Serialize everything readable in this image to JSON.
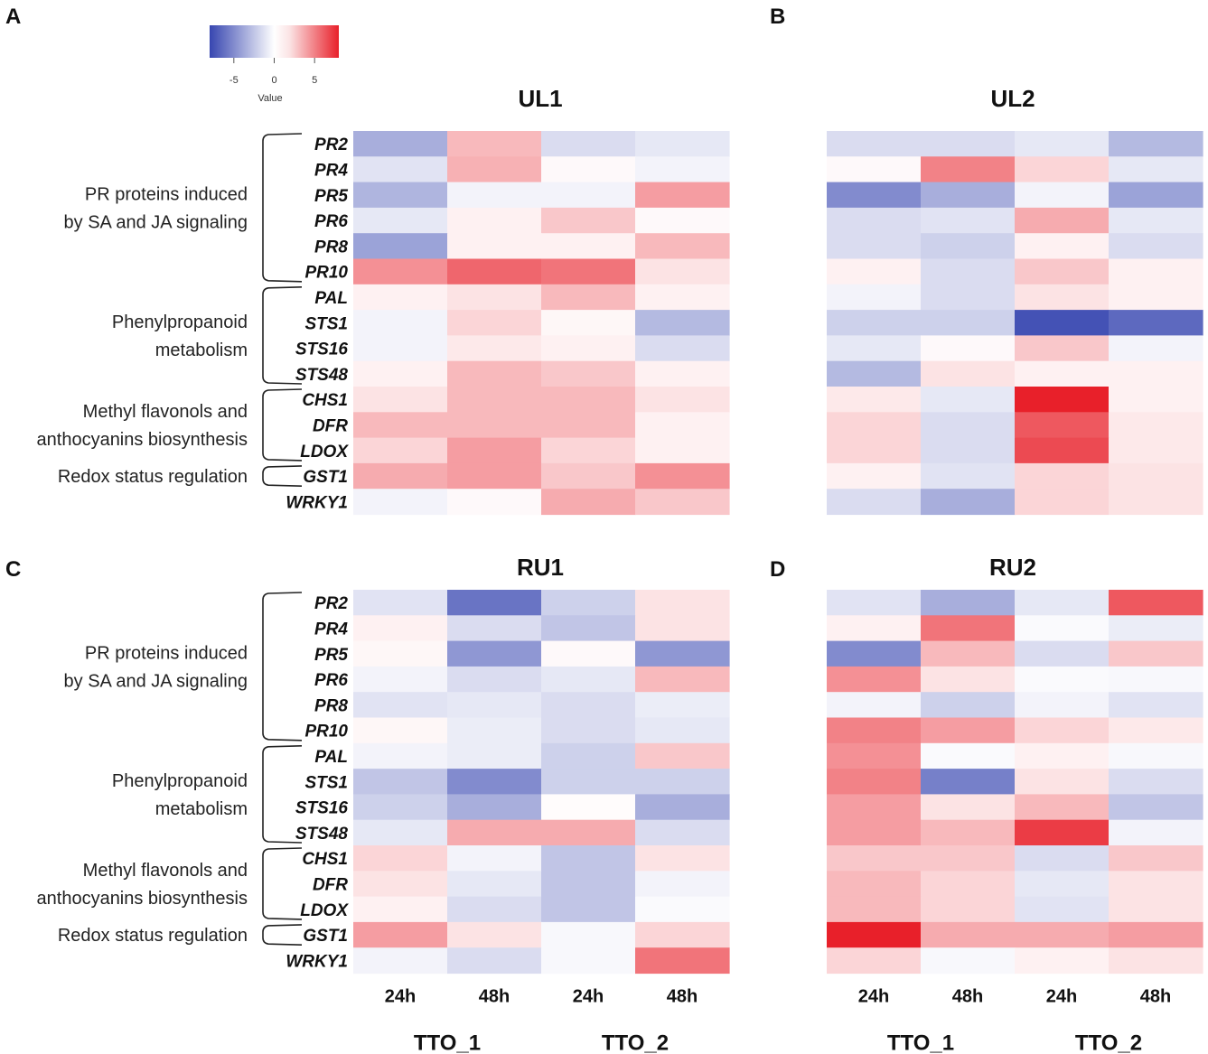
{
  "chart_data": {
    "type": "heatmap",
    "legend": {
      "title": "Value",
      "ticks": [
        "-5",
        "0",
        "5"
      ],
      "range": [
        -8,
        8
      ],
      "colors": {
        "low": "#3746b0",
        "mid": "#ffffff",
        "high": "#e8202a"
      }
    },
    "genes": [
      "PR2",
      "PR4",
      "PR5",
      "PR6",
      "PR8",
      "PR10",
      "PAL",
      "STS1",
      "STS16",
      "STS48",
      "CHS1",
      "DFR",
      "LDOX",
      "GST1",
      "WRKY1"
    ],
    "groups": [
      {
        "label_lines": [
          "PR proteins induced",
          "by SA and JA signaling"
        ],
        "start": 0,
        "end": 5
      },
      {
        "label_lines": [
          "Phenylpropanoid",
          "metabolism"
        ],
        "start": 6,
        "end": 9
      },
      {
        "label_lines": [
          "Methyl flavonols and",
          "anthocyanins biosynthesis"
        ],
        "start": 10,
        "end": 12
      },
      {
        "label_lines": [
          "Redox status regulation"
        ],
        "start": 13,
        "end": 13
      }
    ],
    "columns": [
      "TTO_1 24h",
      "TTO_1 48h",
      "TTO_2 24h",
      "TTO_2 48h"
    ],
    "time_labels": [
      "24h",
      "48h",
      "24h",
      "48h"
    ],
    "treatment_labels": [
      "TTO_1",
      "TTO_2"
    ],
    "panels": [
      {
        "letter": "A",
        "title": "UL1",
        "values": [
          [
            -3.5,
            2.5,
            -1.5,
            -1.0
          ],
          [
            -1.2,
            2.8,
            0.2,
            -0.5
          ],
          [
            -3.2,
            -0.5,
            -0.5,
            3.5
          ],
          [
            -1.0,
            0.5,
            2.0,
            0.2
          ],
          [
            -4.0,
            0.5,
            0.5,
            2.5
          ],
          [
            4.0,
            5.5,
            5.0,
            1.0
          ],
          [
            0.5,
            1.0,
            2.5,
            0.5
          ],
          [
            -0.5,
            1.5,
            0.3,
            -3.0
          ],
          [
            -0.5,
            0.8,
            0.5,
            -1.5
          ],
          [
            0.5,
            2.5,
            2.0,
            0.5
          ],
          [
            1.0,
            2.5,
            2.5,
            1.0
          ],
          [
            2.5,
            2.5,
            2.5,
            0.5
          ],
          [
            1.5,
            3.5,
            1.5,
            0.5
          ],
          [
            3.0,
            3.5,
            2.0,
            4.0
          ],
          [
            -0.5,
            0.2,
            3.0,
            2.0
          ]
        ]
      },
      {
        "letter": "B",
        "title": "UL2",
        "values": [
          [
            -1.5,
            -1.5,
            -1.0,
            -3.0
          ],
          [
            0.2,
            4.5,
            1.5,
            -1.0
          ],
          [
            -5.0,
            -3.5,
            -0.5,
            -4.0
          ],
          [
            -1.5,
            -1.2,
            3.0,
            -1.0
          ],
          [
            -1.5,
            -2.0,
            0.5,
            -1.5
          ],
          [
            0.5,
            -1.5,
            2.0,
            0.5
          ],
          [
            -0.5,
            -1.5,
            1.0,
            0.5
          ],
          [
            -2.0,
            -2.0,
            -7.5,
            -6.5
          ],
          [
            -1.0,
            0.2,
            2.0,
            -0.5
          ],
          [
            -3.0,
            1.0,
            0.5,
            0.5
          ],
          [
            0.8,
            -1.0,
            8.0,
            0.5
          ],
          [
            1.5,
            -1.5,
            6.0,
            0.8
          ],
          [
            1.5,
            -1.5,
            6.5,
            0.8
          ],
          [
            0.5,
            -1.2,
            1.5,
            1.0
          ],
          [
            -1.5,
            -3.5,
            1.5,
            1.0
          ]
        ]
      },
      {
        "letter": "C",
        "title": "RU1",
        "values": [
          [
            -1.2,
            -6.0,
            -2.0,
            1.0
          ],
          [
            0.5,
            -1.5,
            -2.5,
            1.0
          ],
          [
            0.3,
            -4.5,
            0.2,
            -4.5
          ],
          [
            -0.5,
            -1.5,
            -1.0,
            2.5
          ],
          [
            -1.2,
            -1.0,
            -1.5,
            -0.8
          ],
          [
            0.3,
            -0.8,
            -1.5,
            -1.0
          ],
          [
            -0.5,
            -0.8,
            -2.0,
            2.0
          ],
          [
            -2.5,
            -5.0,
            -2.0,
            -2.0
          ],
          [
            -2.0,
            -3.5,
            0.1,
            -3.5
          ],
          [
            -1.0,
            3.0,
            3.0,
            -1.5
          ],
          [
            1.5,
            -0.5,
            -2.5,
            1.0
          ],
          [
            1.0,
            -1.0,
            -2.5,
            -0.5
          ],
          [
            0.5,
            -1.5,
            -2.5,
            -0.2
          ],
          [
            3.5,
            1.0,
            -0.3,
            1.5
          ],
          [
            -0.5,
            -1.5,
            -0.3,
            5.0
          ]
        ]
      },
      {
        "letter": "D",
        "title": "RU2",
        "values": [
          [
            -1.2,
            -3.5,
            -1.0,
            6.0
          ],
          [
            0.5,
            5.0,
            -0.2,
            -0.8
          ],
          [
            -5.0,
            2.5,
            -1.5,
            2.0
          ],
          [
            4.0,
            1.0,
            -0.2,
            -0.3
          ],
          [
            -0.5,
            -2.0,
            -0.5,
            -1.2
          ],
          [
            4.5,
            3.5,
            1.5,
            0.8
          ],
          [
            4.0,
            -0.2,
            0.5,
            -0.3
          ],
          [
            4.5,
            -5.5,
            1.0,
            -1.5
          ],
          [
            3.5,
            1.0,
            2.5,
            -2.5
          ],
          [
            3.5,
            2.5,
            7.0,
            -0.5
          ],
          [
            2.0,
            2.0,
            -1.5,
            2.0
          ],
          [
            2.5,
            1.5,
            -1.0,
            1.0
          ],
          [
            2.5,
            1.5,
            -1.2,
            1.0
          ],
          [
            8.0,
            3.0,
            3.0,
            3.5
          ],
          [
            1.5,
            -0.3,
            0.5,
            1.0
          ]
        ]
      }
    ]
  }
}
